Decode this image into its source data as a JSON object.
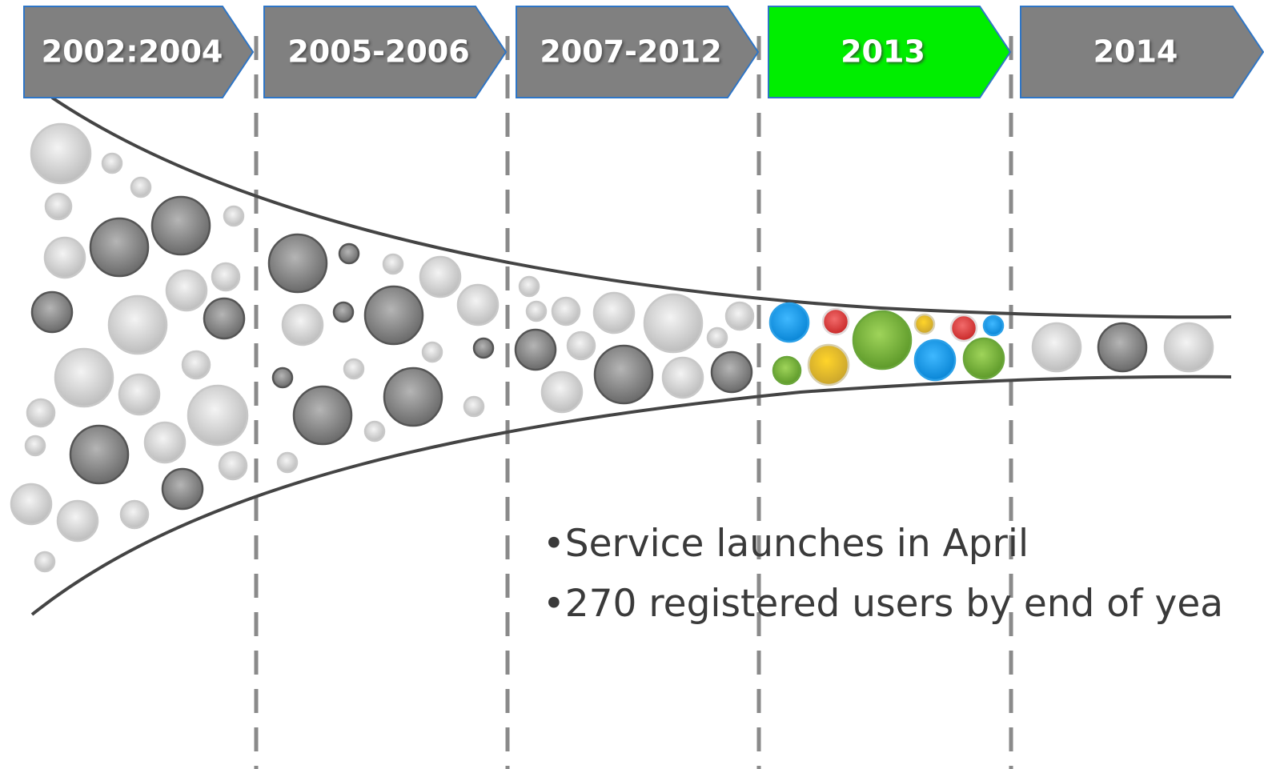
{
  "phases": [
    {
      "label": "2002:2004",
      "color": "#808080"
    },
    {
      "label": "2005-2006",
      "color": "#808080"
    },
    {
      "label": "2007-2012",
      "color": "#808080"
    },
    {
      "label": "2013",
      "color": "#00ee00"
    },
    {
      "label": "2014",
      "color": "#808080"
    }
  ],
  "notes": [
    "Service launches in April",
    "270 registered users by end of yea"
  ]
}
